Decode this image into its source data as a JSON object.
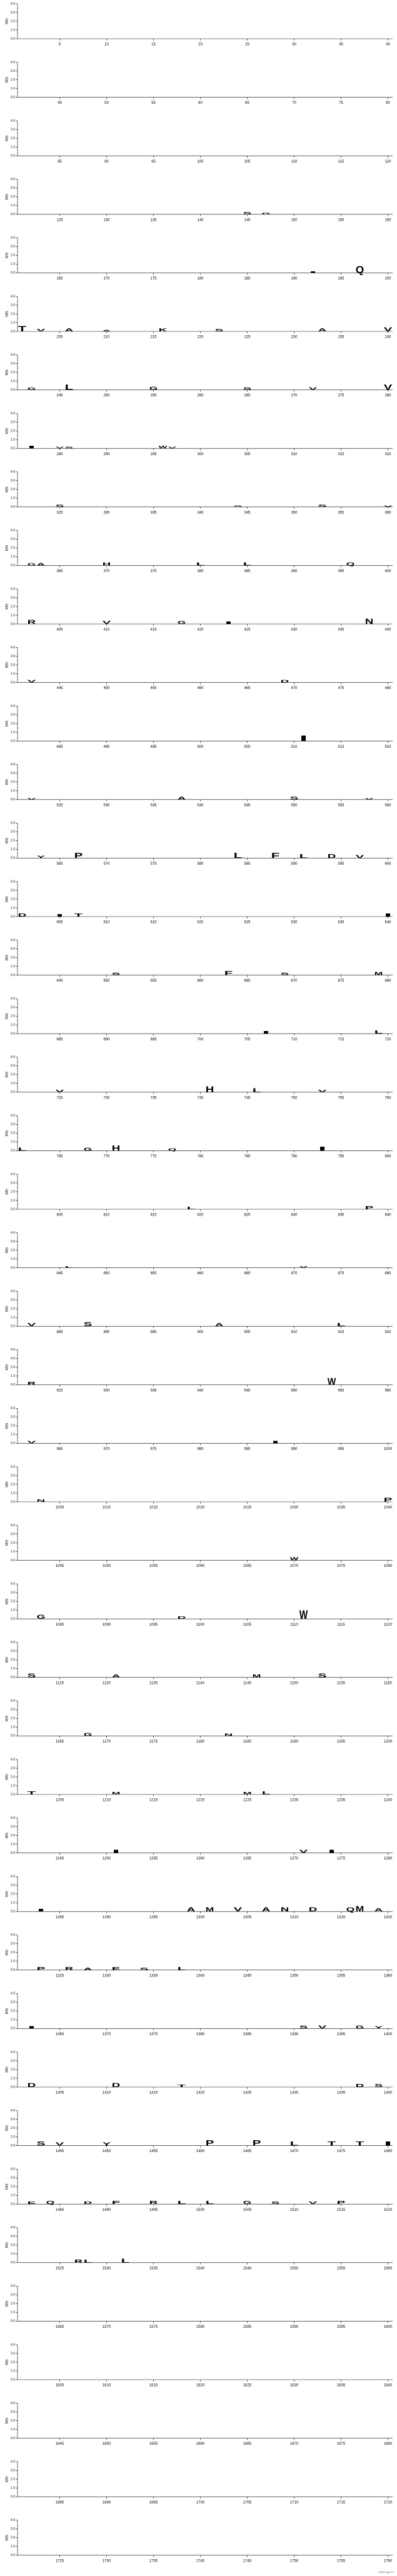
{
  "chart_data": {
    "type": "sequence_logo",
    "y_label": "bits",
    "ylim": [
      0,
      4
    ],
    "yticks": [
      {
        "value": 0,
        "label": "0.0"
      },
      {
        "value": 1,
        "label": "1.0"
      },
      {
        "value": 2,
        "label": "2.0"
      },
      {
        "value": 3,
        "label": "3.0"
      },
      {
        "value": 4,
        "label": "4.0"
      }
    ],
    "xticks": [
      5,
      10,
      15,
      20,
      25,
      30,
      35,
      40,
      45,
      50,
      55,
      60,
      65,
      70,
      75,
      80,
      85,
      90,
      95,
      100,
      105,
      110,
      115,
      120,
      125,
      130,
      135,
      140,
      145,
      150,
      155,
      160,
      165,
      170,
      175,
      180,
      185,
      190,
      195,
      200,
      205,
      210,
      215,
      220,
      225,
      230,
      235,
      240,
      245,
      250,
      255,
      260,
      265,
      270,
      275,
      280,
      285,
      290,
      295,
      300,
      305,
      310,
      315,
      320,
      325,
      330,
      335,
      340,
      345,
      350,
      355,
      360,
      365,
      370,
      375,
      380,
      385,
      390,
      395,
      400,
      405,
      410,
      415,
      420,
      425,
      430,
      435,
      440,
      445,
      450,
      455,
      460,
      465,
      470,
      475,
      480,
      485,
      490,
      495,
      500,
      505,
      510,
      515,
      520,
      525,
      530,
      535,
      540,
      545,
      550,
      555,
      560,
      565,
      570,
      575,
      580,
      585,
      590,
      595,
      600,
      605,
      610,
      615,
      620,
      625,
      630,
      635,
      640,
      645,
      650,
      655,
      660,
      665,
      670,
      675,
      680,
      685,
      690,
      695,
      700,
      705,
      710,
      715,
      720,
      725,
      730,
      735,
      740,
      745,
      750,
      755,
      760,
      765,
      770,
      775,
      780,
      785,
      790,
      795,
      800,
      805,
      810,
      815,
      820,
      825,
      830,
      835,
      840,
      845,
      850,
      855,
      860,
      865,
      870,
      875,
      880,
      885,
      890,
      895,
      900,
      905,
      910,
      915,
      920,
      925,
      930,
      935,
      940,
      945,
      950,
      955,
      960,
      965,
      970,
      975,
      980,
      985,
      990,
      995,
      1000,
      1005,
      1010,
      1015,
      1020,
      1025,
      1030,
      1035,
      1040,
      1045,
      1050,
      1055,
      1060,
      1065,
      1070,
      1075,
      1080,
      1085,
      1090,
      1095,
      1100,
      1105,
      1110,
      1115,
      1120,
      1125,
      1130,
      1135,
      1140,
      1145,
      1150,
      1155,
      1160,
      1165,
      1170,
      1175,
      1180,
      1185,
      1190,
      1195,
      1200,
      1205,
      1210,
      1215,
      1220,
      1225,
      1230,
      1235,
      1240,
      1245,
      1250,
      1255,
      1260,
      1265,
      1270,
      1275,
      1280,
      1285,
      1290,
      1295,
      1300,
      1305,
      1310,
      1315,
      1320,
      1325,
      1330,
      1335,
      1340,
      1345,
      1350,
      1355,
      1360,
      1365,
      1370,
      1375,
      1380,
      1385,
      1390,
      1395,
      1400,
      1405,
      1410,
      1415,
      1420,
      1425,
      1430,
      1435,
      1440,
      1445,
      1450,
      1455,
      1460,
      1465,
      1470,
      1475,
      1480,
      1485,
      1490,
      1495,
      1500,
      1505,
      1510,
      1515,
      1520,
      1525,
      1530,
      1535,
      1540,
      1545,
      1550,
      1555,
      1560,
      1565,
      1570,
      1575,
      1580,
      1585,
      1590,
      1595,
      1600,
      1605,
      1610,
      1615,
      1620,
      1625,
      1630,
      1635,
      1640,
      1645,
      1650,
      1655,
      1660,
      1665,
      1670,
      1675,
      1680,
      1685,
      1690,
      1695,
      1700,
      1705,
      1710,
      1715,
      1720,
      1725,
      1730,
      1735,
      1740,
      1745,
      1750,
      1755,
      1760
    ],
    "colors": {
      "A": "#000000",
      "K": "#000000",
      "Q": "#000000",
      "N": "#000000",
      "D": "#000000",
      "R": "#000000",
      "E": "#000000",
      "S": "#21a121",
      "G": "#21a121",
      "P": "#21a121",
      "H": "#21a121",
      "T": "#21a121",
      "C": "#21a121",
      "V": "#2a2ad6",
      "L": "#2a2ad6",
      "W": "#2a2ad6",
      "I": "#2a2ad6",
      "F": "#2a2ad6",
      "Y": "#2a2ad6",
      "M": "#2a2ad6"
    },
    "letters": [
      {
        "position": 145,
        "letter": "S",
        "bits": 0.3
      },
      {
        "position": 147,
        "letter": "G",
        "bits": 0.25
      },
      {
        "position": 192,
        "letter": "I",
        "bits": 0.2
      },
      {
        "position": 197,
        "letter": "Q",
        "bits": 0.8
      },
      {
        "position": 201,
        "letter": "T",
        "bits": 0.6
      },
      {
        "position": 203,
        "letter": "V",
        "bits": 0.3
      },
      {
        "position": 206,
        "letter": "A",
        "bits": 0.4
      },
      {
        "position": 210,
        "letter": "A",
        "bits": 0.2
      },
      {
        "position": 216,
        "letter": "K",
        "bits": 0.4
      },
      {
        "position": 222,
        "letter": "S",
        "bits": 0.3
      },
      {
        "position": 233,
        "letter": "A",
        "bits": 0.4
      },
      {
        "position": 240,
        "letter": "V",
        "bits": 0.5
      },
      {
        "position": 242,
        "letter": "G",
        "bits": 0.3
      },
      {
        "position": 246,
        "letter": "L",
        "bits": 0.6
      },
      {
        "position": 255,
        "letter": "G",
        "bits": 0.4
      },
      {
        "position": 265,
        "letter": "S",
        "bits": 0.3
      },
      {
        "position": 272,
        "letter": "V",
        "bits": 0.3
      },
      {
        "position": 280,
        "letter": "V",
        "bits": 0.6
      },
      {
        "position": 282,
        "letter": "I",
        "bits": 0.3
      },
      {
        "position": 285,
        "letter": "V",
        "bits": 0.2
      },
      {
        "position": 286,
        "letter": "S",
        "bits": 0.2
      },
      {
        "position": 296,
        "letter": "W",
        "bits": 0.3
      },
      {
        "position": 297,
        "letter": "V",
        "bits": 0.2
      },
      {
        "position": 325,
        "letter": "S",
        "bits": 0.3
      },
      {
        "position": 344,
        "letter": "S",
        "bits": 0.2
      },
      {
        "position": 353,
        "letter": "S",
        "bits": 0.3
      },
      {
        "position": 360,
        "letter": "V",
        "bits": 0.2
      },
      {
        "position": 362,
        "letter": "G",
        "bits": 0.3
      },
      {
        "position": 363,
        "letter": "A",
        "bits": 0.3
      },
      {
        "position": 370,
        "letter": "H",
        "bits": 0.4
      },
      {
        "position": 380,
        "letter": "L",
        "bits": 0.4
      },
      {
        "position": 385,
        "letter": "L",
        "bits": 0.4
      },
      {
        "position": 396,
        "letter": "Q",
        "bits": 0.4
      },
      {
        "position": 402,
        "letter": "R",
        "bits": 0.5
      },
      {
        "position": 410,
        "letter": "V",
        "bits": 0.4
      },
      {
        "position": 418,
        "letter": "G",
        "bits": 0.4
      },
      {
        "position": 423,
        "letter": "I",
        "bits": 0.3
      },
      {
        "position": 438,
        "letter": "N",
        "bits": 0.6
      },
      {
        "position": 442,
        "letter": "V",
        "bits": 0.3
      },
      {
        "position": 469,
        "letter": "D",
        "bits": 0.3
      },
      {
        "position": 511,
        "letter": "I",
        "bits": 0.6
      },
      {
        "position": 522,
        "letter": "V",
        "bits": 0.2
      },
      {
        "position": 538,
        "letter": "A",
        "bits": 0.4
      },
      {
        "position": 550,
        "letter": "S",
        "bits": 0.4
      },
      {
        "position": 558,
        "letter": "V",
        "bits": 0.2
      },
      {
        "position": 563,
        "letter": "Y",
        "bits": 0.3
      },
      {
        "position": 567,
        "letter": "P",
        "bits": 0.6
      },
      {
        "position": 584,
        "letter": "L",
        "bits": 0.6
      },
      {
        "position": 588,
        "letter": "F",
        "bits": 0.6
      },
      {
        "position": 591,
        "letter": "L",
        "bits": 0.5
      },
      {
        "position": 594,
        "letter": "D",
        "bits": 0.5
      },
      {
        "position": 597,
        "letter": "V",
        "bits": 0.4
      },
      {
        "position": 601,
        "letter": "D",
        "bits": 0.4
      },
      {
        "position": 605,
        "letter": "I",
        "bits": 0.3
      },
      {
        "position": 607,
        "letter": "T",
        "bits": 0.4
      },
      {
        "position": 640,
        "letter": "I",
        "bits": 0.4
      },
      {
        "position": 651,
        "letter": "S",
        "bits": 0.3
      },
      {
        "position": 663,
        "letter": "F",
        "bits": 0.5
      },
      {
        "position": 669,
        "letter": "S",
        "bits": 0.3
      },
      {
        "position": 679,
        "letter": "M",
        "bits": 0.4
      },
      {
        "position": 707,
        "letter": "I",
        "bits": 0.3
      },
      {
        "position": 719,
        "letter": "L",
        "bits": 0.4
      },
      {
        "position": 725,
        "letter": "V",
        "bits": 0.3
      },
      {
        "position": 741,
        "letter": "H",
        "bits": 0.7
      },
      {
        "position": 746,
        "letter": "L",
        "bits": 0.5
      },
      {
        "position": 753,
        "letter": "V",
        "bits": 0.3
      },
      {
        "position": 761,
        "letter": "L",
        "bits": 0.4
      },
      {
        "position": 768,
        "letter": "G",
        "bits": 0.4
      },
      {
        "position": 771,
        "letter": "H",
        "bits": 0.6
      },
      {
        "position": 777,
        "letter": "Q",
        "bits": 0.3
      },
      {
        "position": 793,
        "letter": "I",
        "bits": 0.5
      },
      {
        "position": 819,
        "letter": "L",
        "bits": 0.3
      },
      {
        "position": 838,
        "letter": "P",
        "bits": 0.4
      },
      {
        "position": 846,
        "letter": "L",
        "bits": 0.2
      },
      {
        "position": 871,
        "letter": "V",
        "bits": 0.2
      },
      {
        "position": 882,
        "letter": "V",
        "bits": 0.4
      },
      {
        "position": 888,
        "letter": "S",
        "bits": 0.5
      },
      {
        "position": 902,
        "letter": "A",
        "bits": 0.4
      },
      {
        "position": 915,
        "letter": "L",
        "bits": 0.4
      },
      {
        "position": 922,
        "letter": "R",
        "bits": 0.4
      },
      {
        "position": 954,
        "letter": "W",
        "bits": 0.8
      },
      {
        "position": 962,
        "letter": "V",
        "bits": 0.3
      },
      {
        "position": 988,
        "letter": "I",
        "bits": 0.3
      },
      {
        "position": 1003,
        "letter": "N",
        "bits": 0.3
      },
      {
        "position": 1040,
        "letter": "P",
        "bits": 0.5
      },
      {
        "position": 1070,
        "letter": "W",
        "bits": 0.4
      },
      {
        "position": 1083,
        "letter": "G",
        "bits": 0.5
      },
      {
        "position": 1098,
        "letter": "D",
        "bits": 0.3
      },
      {
        "position": 1111,
        "letter": "W",
        "bits": 1.0
      },
      {
        "position": 1122,
        "letter": "S",
        "bits": 0.5
      },
      {
        "position": 1131,
        "letter": "A",
        "bits": 0.4
      },
      {
        "position": 1146,
        "letter": "M",
        "bits": 0.4
      },
      {
        "position": 1153,
        "letter": "S",
        "bits": 0.5
      },
      {
        "position": 1168,
        "letter": "G",
        "bits": 0.4
      },
      {
        "position": 1183,
        "letter": "N",
        "bits": 0.3
      },
      {
        "position": 1202,
        "letter": "T",
        "bits": 0.4
      },
      {
        "position": 1211,
        "letter": "M",
        "bits": 0.3
      },
      {
        "position": 1225,
        "letter": "M",
        "bits": 0.3
      },
      {
        "position": 1227,
        "letter": "L",
        "bits": 0.4
      },
      {
        "position": 1251,
        "letter": "I",
        "bits": 0.4
      },
      {
        "position": 1271,
        "letter": "V",
        "bits": 0.4
      },
      {
        "position": 1274,
        "letter": "I",
        "bits": 0.4
      },
      {
        "position": 1283,
        "letter": "I",
        "bits": 0.3
      },
      {
        "position": 1299,
        "letter": "A",
        "bits": 0.5
      },
      {
        "position": 1301,
        "letter": "M",
        "bits": 0.5
      },
      {
        "position": 1304,
        "letter": "V",
        "bits": 0.5
      },
      {
        "position": 1307,
        "letter": "A",
        "bits": 0.5
      },
      {
        "position": 1309,
        "letter": "N",
        "bits": 0.5
      },
      {
        "position": 1312,
        "letter": "D",
        "bits": 0.5
      },
      {
        "position": 1316,
        "letter": "Q",
        "bits": 0.5
      },
      {
        "position": 1317,
        "letter": "M",
        "bits": 0.6
      },
      {
        "position": 1319,
        "letter": "A",
        "bits": 0.4
      },
      {
        "position": 1323,
        "letter": "P",
        "bits": 0.4
      },
      {
        "position": 1326,
        "letter": "R",
        "bits": 0.4
      },
      {
        "position": 1328,
        "letter": "A",
        "bits": 0.3
      },
      {
        "position": 1331,
        "letter": "E",
        "bits": 0.4
      },
      {
        "position": 1334,
        "letter": "S",
        "bits": 0.3
      },
      {
        "position": 1338,
        "letter": "L",
        "bits": 0.4
      },
      {
        "position": 1362,
        "letter": "I",
        "bits": 0.3
      },
      {
        "position": 1391,
        "letter": "S",
        "bits": 0.4
      },
      {
        "position": 1393,
        "letter": "V",
        "bits": 0.4
      },
      {
        "position": 1397,
        "letter": "G",
        "bits": 0.4
      },
      {
        "position": 1399,
        "letter": "Y",
        "bits": 0.3
      },
      {
        "position": 1402,
        "letter": "D",
        "bits": 0.5
      },
      {
        "position": 1411,
        "letter": "D",
        "bits": 0.5
      },
      {
        "position": 1418,
        "letter": "T",
        "bits": 0.3
      },
      {
        "position": 1437,
        "letter": "D",
        "bits": 0.4
      },
      {
        "position": 1439,
        "letter": "S",
        "bits": 0.4
      },
      {
        "position": 1443,
        "letter": "S",
        "bits": 0.5
      },
      {
        "position": 1445,
        "letter": "V",
        "bits": 0.4
      },
      {
        "position": 1450,
        "letter": "Y",
        "bits": 0.4
      },
      {
        "position": 1461,
        "letter": "P",
        "bits": 0.6
      },
      {
        "position": 1466,
        "letter": "P",
        "bits": 0.6
      },
      {
        "position": 1470,
        "letter": "L",
        "bits": 0.5
      },
      {
        "position": 1474,
        "letter": "T",
        "bits": 0.5
      },
      {
        "position": 1477,
        "letter": "T",
        "bits": 0.5
      },
      {
        "position": 1480,
        "letter": "I",
        "bits": 0.5
      },
      {
        "position": 1482,
        "letter": "E",
        "bits": 0.3
      },
      {
        "position": 1484,
        "letter": "Q",
        "bits": 0.4
      },
      {
        "position": 1488,
        "letter": "D",
        "bits": 0.3
      },
      {
        "position": 1491,
        "letter": "F",
        "bits": 0.4
      },
      {
        "position": 1495,
        "letter": "R",
        "bits": 0.4
      },
      {
        "position": 1498,
        "letter": "L",
        "bits": 0.4
      },
      {
        "position": 1501,
        "letter": "L",
        "bits": 0.4
      },
      {
        "position": 1505,
        "letter": "G",
        "bits": 0.4
      },
      {
        "position": 1508,
        "letter": "S",
        "bits": 0.3
      },
      {
        "position": 1512,
        "letter": "V",
        "bits": 0.3
      },
      {
        "position": 1515,
        "letter": "P",
        "bits": 0.4
      },
      {
        "position": 1527,
        "letter": "R",
        "bits": 0.4
      },
      {
        "position": 1528,
        "letter": "L",
        "bits": 0.4
      },
      {
        "position": 1532,
        "letter": "L",
        "bits": 0.5
      }
    ],
    "footer": "WebLogo 3.4"
  }
}
